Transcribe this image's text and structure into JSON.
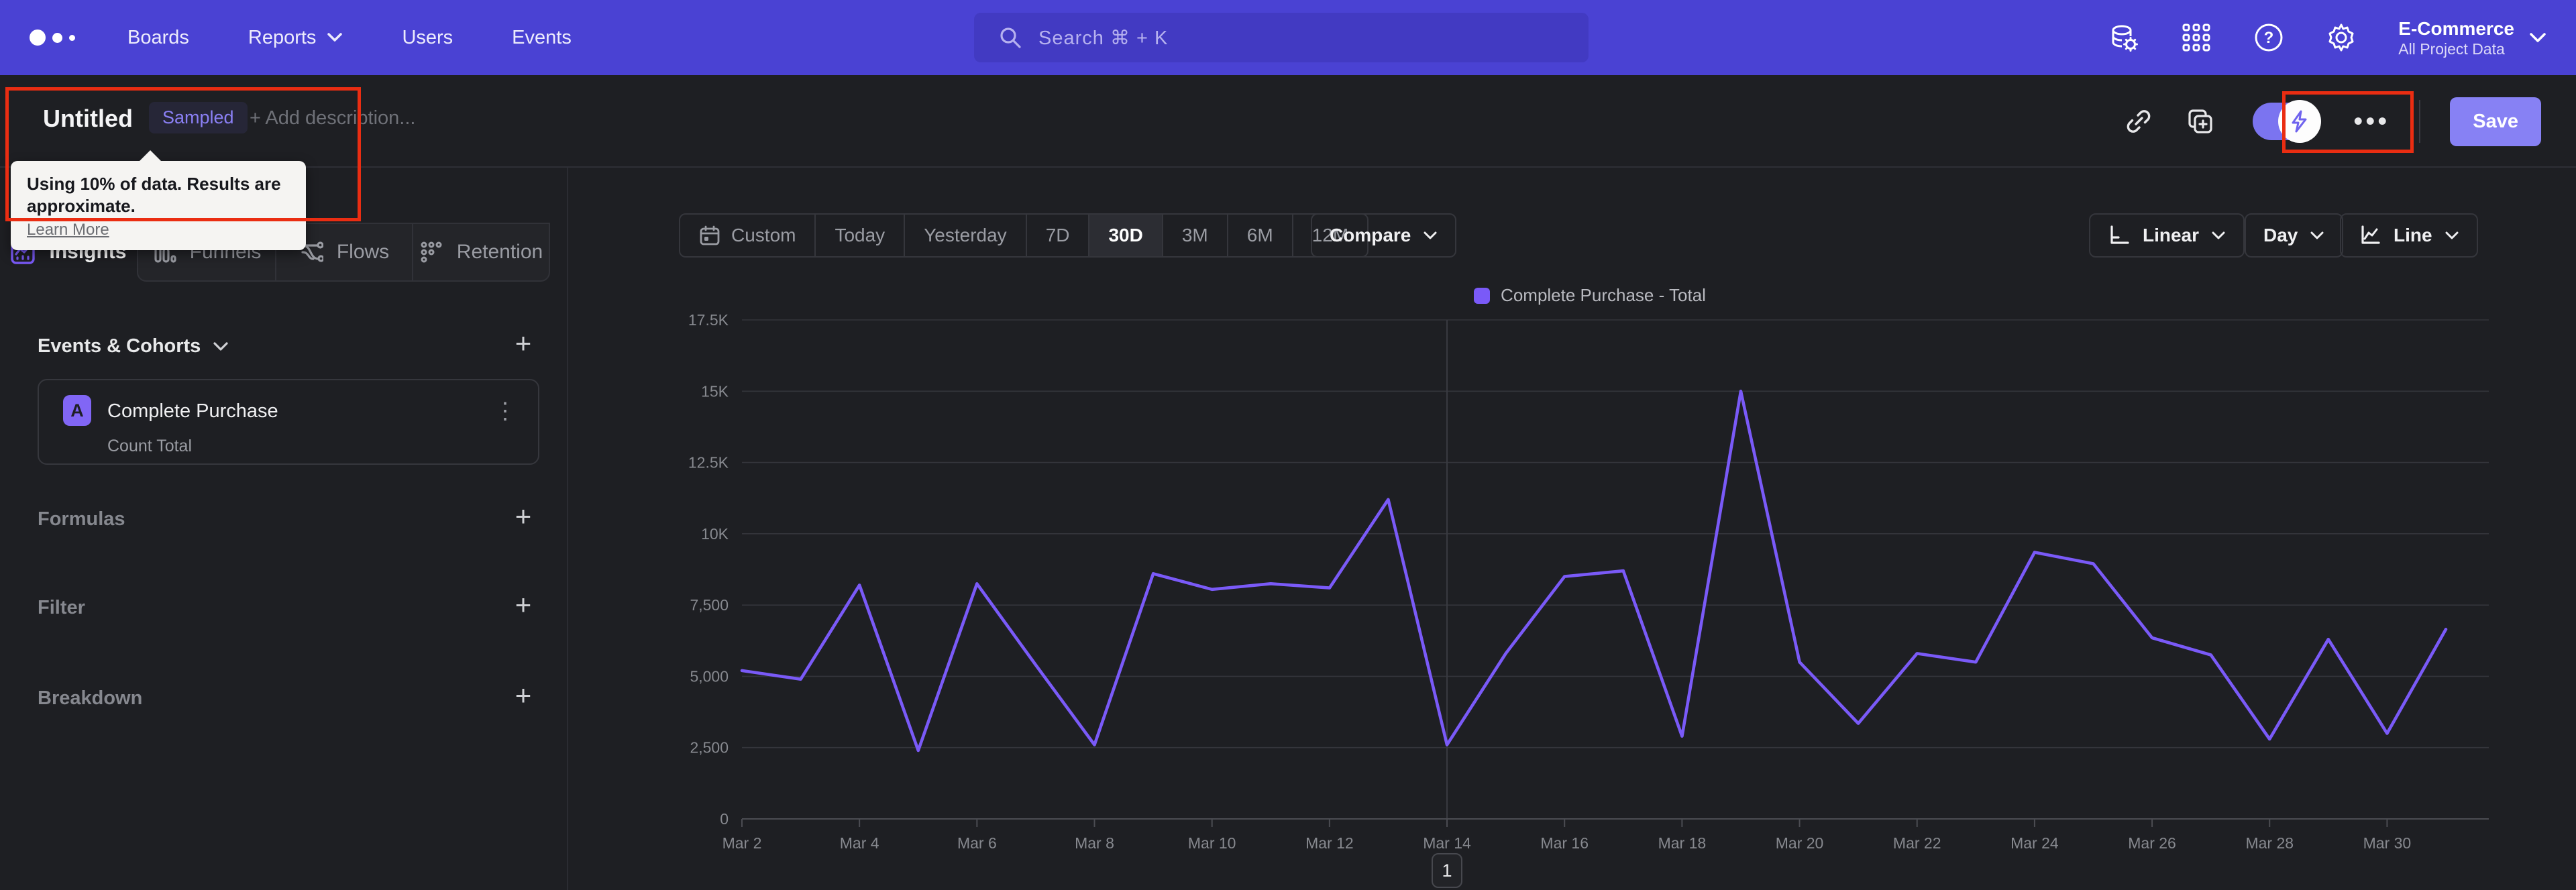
{
  "nav": {
    "items": [
      "Boards",
      "Reports",
      "Users",
      "Events"
    ],
    "search_placeholder": "Search  ⌘ + K",
    "project_name": "E-Commerce",
    "project_scope": "All Project Data"
  },
  "header": {
    "title": "Untitled",
    "badge": "Sampled",
    "description_placeholder": "+ Add description...",
    "save_label": "Save",
    "tooltip": {
      "text": "Using 10% of data. Results are approximate.",
      "link": "Learn More"
    }
  },
  "tabs": [
    {
      "label": "Insights"
    },
    {
      "label": "Funnels"
    },
    {
      "label": "Flows"
    },
    {
      "label": "Retention"
    }
  ],
  "sidebar": {
    "events_heading": "Events & Cohorts",
    "event_card": {
      "letter": "A",
      "title": "Complete Purchase",
      "subtitle": "Count Total"
    },
    "sections": [
      "Formulas",
      "Filter",
      "Breakdown"
    ]
  },
  "toolbar": {
    "ranges": [
      "Custom",
      "Today",
      "Yesterday",
      "7D",
      "30D",
      "3M",
      "6M",
      "12M"
    ],
    "active_range": "30D",
    "compare_label": "Compare",
    "scale_label": "Linear",
    "interval_label": "Day",
    "chart_type_label": "Line"
  },
  "chart_data": {
    "type": "line",
    "x": [
      "Mar 2",
      "Mar 3",
      "Mar 4",
      "Mar 5",
      "Mar 6",
      "Mar 7",
      "Mar 8",
      "Mar 9",
      "Mar 10",
      "Mar 11",
      "Mar 12",
      "Mar 13",
      "Mar 14",
      "Mar 15",
      "Mar 16",
      "Mar 17",
      "Mar 18",
      "Mar 19",
      "Mar 20",
      "Mar 21",
      "Mar 22",
      "Mar 23",
      "Mar 24",
      "Mar 25",
      "Mar 26",
      "Mar 27",
      "Mar 28",
      "Mar 29",
      "Mar 30",
      "Mar 31"
    ],
    "series": [
      {
        "name": "Complete Purchase - Total",
        "color": "#7a5af8",
        "values": [
          5200,
          4900,
          8200,
          2400,
          8250,
          5400,
          2600,
          8600,
          8050,
          8250,
          8100,
          11200,
          2600,
          5800,
          8500,
          8700,
          2900,
          15000,
          5500,
          3350,
          5800,
          5500,
          9350,
          8950,
          6350,
          5750,
          2800,
          6300,
          3000,
          6650
        ]
      }
    ],
    "ylim": [
      0,
      17500
    ],
    "yticks": {
      "values": [
        0,
        2500,
        5000,
        7500,
        10000,
        12500,
        15000,
        17500
      ],
      "labels": [
        "0",
        "2,500",
        "5,000",
        "7,500",
        "10K",
        "12.5K",
        "15K",
        "17.5K"
      ]
    },
    "xtick_every": 2,
    "marker_x": "Mar 14",
    "legend_position": "top",
    "grid": true
  },
  "pagination": "1",
  "colors": {
    "nav_bg": "#4a42d3",
    "page_bg": "#1e1f23",
    "accent": "#7a5af8",
    "ui_purple": "#8781f4",
    "annotation_red": "#ea2d12",
    "badge_text": "#8b80f5"
  }
}
